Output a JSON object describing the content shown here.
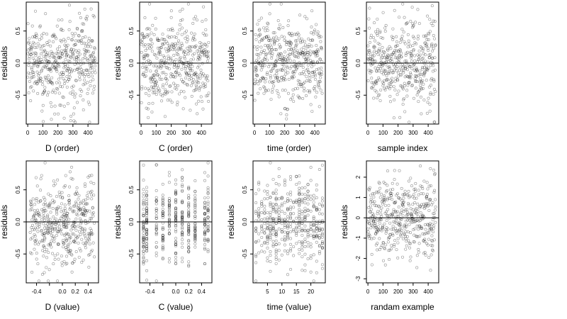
{
  "chart_data": [
    {
      "type": "scatter",
      "xlabel": "D (order)",
      "ylabel": "residuals",
      "xlim": [
        -10,
        470
      ],
      "ylim": [
        -0.95,
        0.95
      ],
      "xticks": [
        0,
        100,
        200,
        300,
        400
      ],
      "yticks": [
        -0.5,
        0.0,
        0.5
      ],
      "n_points": 450,
      "x_kind": "index",
      "y_sd": 0.33,
      "spread_note": "random residuals around zero, reference line at 0"
    },
    {
      "type": "scatter",
      "xlabel": "C (order)",
      "ylabel": "residuals",
      "xlim": [
        -10,
        470
      ],
      "ylim": [
        -0.95,
        0.95
      ],
      "xticks": [
        0,
        100,
        200,
        300,
        400
      ],
      "yticks": [
        -0.5,
        0.0,
        0.5
      ],
      "n_points": 450,
      "x_kind": "index",
      "y_sd": 0.33
    },
    {
      "type": "scatter",
      "xlabel": "time (order)",
      "ylabel": "residuals",
      "xlim": [
        -10,
        470
      ],
      "ylim": [
        -0.95,
        0.95
      ],
      "xticks": [
        0,
        100,
        200,
        300,
        400
      ],
      "yticks": [
        -0.5,
        0.0,
        0.5
      ],
      "n_points": 450,
      "x_kind": "index",
      "y_sd": 0.33
    },
    {
      "type": "scatter",
      "xlabel": "sample index",
      "ylabel": "residuals",
      "xlim": [
        -10,
        470
      ],
      "ylim": [
        -0.95,
        0.95
      ],
      "xticks": [
        0,
        100,
        200,
        300,
        400
      ],
      "yticks": [
        -0.5,
        0.0,
        0.5
      ],
      "n_points": 450,
      "x_kind": "index",
      "y_sd": 0.33
    },
    {
      "type": "scatter",
      "xlabel": "D (value)",
      "ylabel": "residuals",
      "xlim": [
        -0.56,
        0.56
      ],
      "ylim": [
        -0.95,
        0.95
      ],
      "xticks": [
        -0.4,
        -0.2,
        0.0,
        0.2,
        0.4
      ],
      "xtick_labels": [
        "-0.4",
        "",
        "0.0",
        "0.2",
        "0.4"
      ],
      "yticks": [
        -0.5,
        0.0,
        0.5
      ],
      "n_points": 450,
      "x_kind": "uniform",
      "x_range": [
        -0.5,
        0.5
      ],
      "y_sd": 0.33
    },
    {
      "type": "scatter",
      "xlabel": "C (value)",
      "ylabel": "residuals",
      "xlim": [
        -0.56,
        0.56
      ],
      "ylim": [
        -0.95,
        0.95
      ],
      "xticks": [
        -0.4,
        -0.2,
        0.0,
        0.2,
        0.4
      ],
      "xtick_labels": [
        "-0.4",
        "",
        "0.0",
        "0.2",
        "0.4"
      ],
      "yticks": [
        -0.5,
        0.0,
        0.5
      ],
      "n_points": 450,
      "x_kind": "levels",
      "x_levels": [
        -0.5,
        -0.45,
        -0.3,
        -0.2,
        -0.1,
        0.0,
        0.1,
        0.2,
        0.3,
        0.45,
        0.5
      ],
      "y_sd": 0.33
    },
    {
      "type": "scatter",
      "xlabel": "time (value)",
      "ylabel": "residuals",
      "xlim": [
        0,
        25
      ],
      "ylim": [
        -0.95,
        0.95
      ],
      "xticks": [
        5,
        10,
        15,
        20
      ],
      "yticks": [
        -0.5,
        0.0,
        0.5
      ],
      "n_points": 450,
      "x_kind": "levels",
      "x_levels": [
        1,
        2,
        3,
        4,
        5,
        6,
        7,
        8,
        9,
        10,
        11,
        12,
        13,
        14,
        15,
        16,
        17,
        18,
        19,
        20,
        21,
        22,
        23,
        24
      ],
      "y_sd": 0.33
    },
    {
      "type": "scatter",
      "xlabel": "randam example",
      "ylabel": "residuals",
      "xlim": [
        -10,
        470
      ],
      "ylim": [
        -3.2,
        2.8
      ],
      "xticks": [
        0,
        100,
        200,
        300,
        400
      ],
      "yticks": [
        -3,
        -2,
        -1,
        0,
        1,
        2
      ],
      "n_points": 450,
      "x_kind": "index",
      "y_sd": 0.95
    }
  ]
}
